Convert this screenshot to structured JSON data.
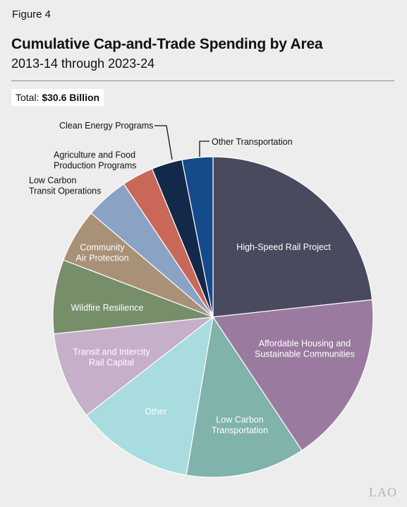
{
  "figure_label": "Figure 4",
  "title": "Cumulative Cap-and-Trade Spending by Area",
  "subtitle": "2013-14 through 2023-24",
  "total_label": "Total: ",
  "total_value": "$30.6 Billion",
  "logo": "LAO",
  "chart_data": {
    "type": "pie",
    "start": "12 o'clock, clockwise",
    "total": "$30.6 Billion",
    "slices": [
      {
        "label": [
          "High-Speed Rail Project"
        ],
        "value": 24.0,
        "color": "#4a4a5f",
        "text_color": "#ffffff"
      },
      {
        "label": [
          "Affordable Housing and",
          "Sustainable Communities"
        ],
        "value": 17.9,
        "color": "#9b7aa0",
        "text_color": "#ffffff"
      },
      {
        "label": [
          "Low Carbon",
          "Transportation"
        ],
        "value": 12.4,
        "color": "#80b3ab",
        "text_color": "#ffffff"
      },
      {
        "label": [
          "Other"
        ],
        "value": 12.2,
        "color": "#a8dcdf",
        "text_color": "#ffffff"
      },
      {
        "label": [
          "Transit and Intercity",
          "Rail Capital"
        ],
        "value": 9.1,
        "color": "#c5afc9",
        "text_color": "#ffffff"
      },
      {
        "label": [
          "Wildfire Resilience"
        ],
        "value": 7.7,
        "color": "#778e6b",
        "text_color": "#ffffff"
      },
      {
        "label": [
          "Community",
          "Air Protection"
        ],
        "value": 5.6,
        "color": "#a89177",
        "text_color": "#ffffff"
      },
      {
        "label": [
          "Low Carbon",
          "Transit Operations"
        ],
        "value": 4.5,
        "color": "#8aa2c4",
        "text_color": "#111111"
      },
      {
        "label": [
          "Agriculture and Food",
          "Production Programs"
        ],
        "value": 3.3,
        "color": "#c96859",
        "text_color": "#111111"
      },
      {
        "label": [
          "Clean Energy Programs"
        ],
        "value": 3.2,
        "color": "#142849",
        "text_color": "#111111"
      },
      {
        "label": [
          "Other Transportation"
        ],
        "value": 3.2,
        "color": "#154b8a",
        "text_color": "#111111"
      }
    ]
  }
}
